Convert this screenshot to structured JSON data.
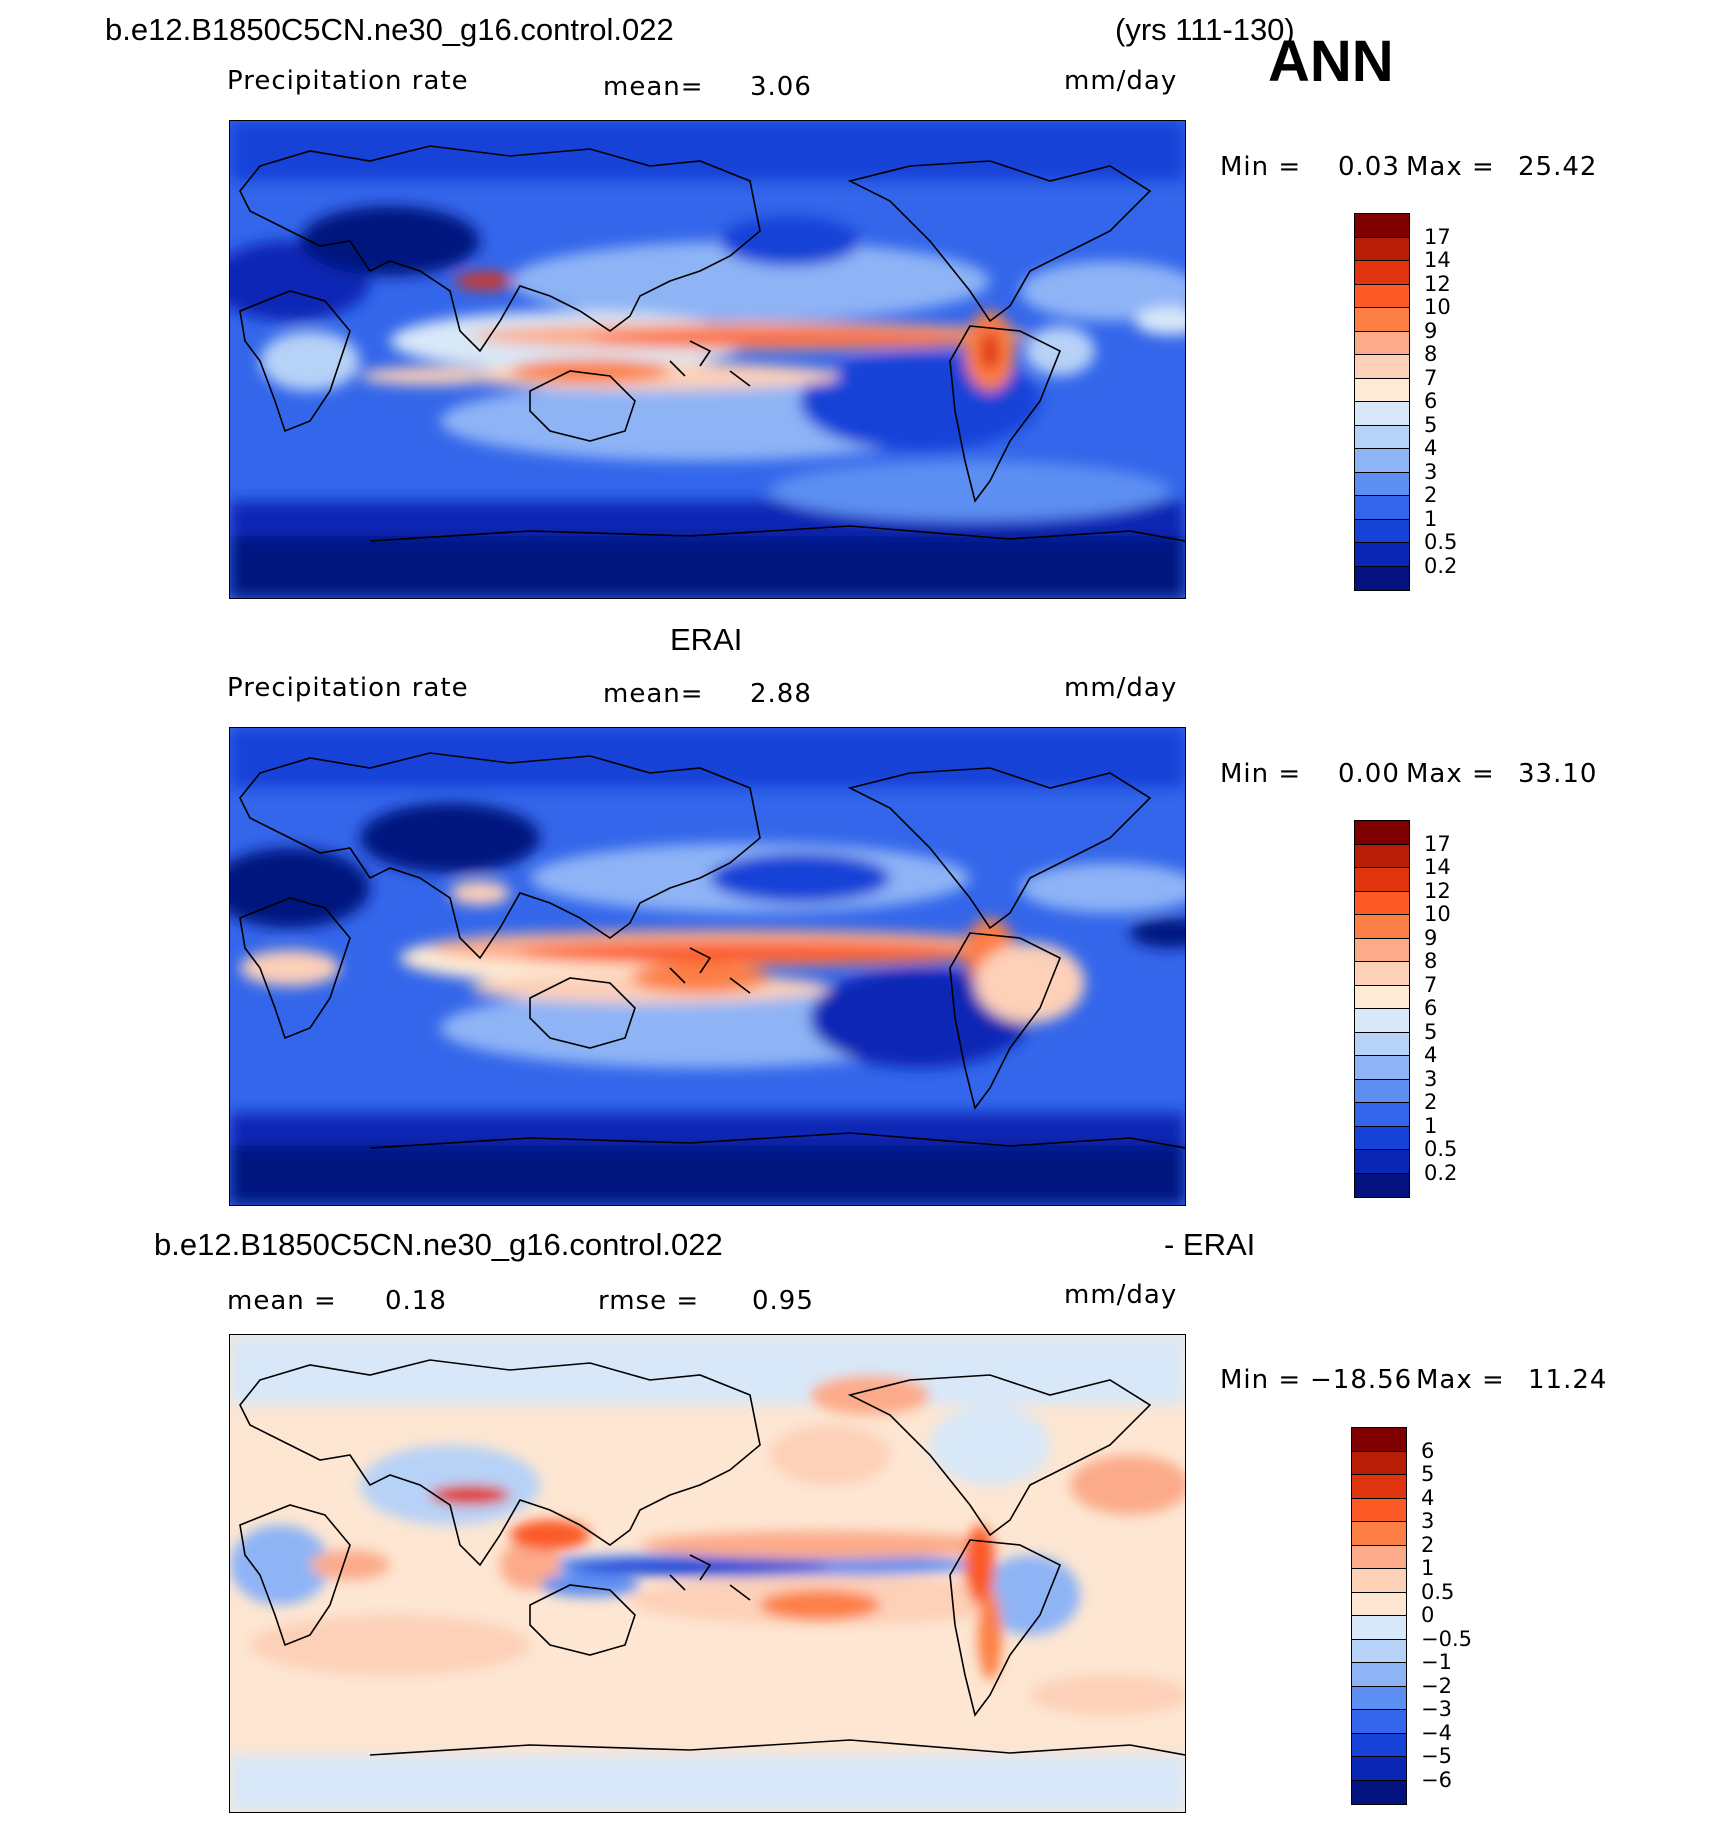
{
  "header": {
    "case_name": "b.e12.B1850C5CN.ne30_g16.control.022",
    "years": "(yrs 111-130)",
    "season": "ANN"
  },
  "panels": [
    {
      "title": "",
      "variable": "Precipitation rate",
      "stat1_label": "mean=",
      "stat1_value": "3.06",
      "stat2_label": "",
      "stat2_value": "",
      "units": "mm/day",
      "min_label": "Min =",
      "min_value": "0.03",
      "max_label": "Max =",
      "max_value": "25.42",
      "colorbar": {
        "ticks": [
          "17",
          "14",
          "12",
          "10",
          "9",
          "8",
          "7",
          "6",
          "5",
          "4",
          "3",
          "2",
          "1",
          "0.5",
          "0.2"
        ],
        "colors": [
          "#7f0000",
          "#b81d06",
          "#e0340f",
          "#fb5a26",
          "#fc7f45",
          "#fcab8a",
          "#fdd0b8",
          "#fdebd6",
          "#d8e8f8",
          "#b7d2f7",
          "#8eb4f6",
          "#5d8ff2",
          "#3366ea",
          "#1742d8",
          "#0a26b5",
          "#02127f"
        ]
      }
    },
    {
      "title": "ERAI",
      "variable": "Precipitation rate",
      "stat1_label": "mean=",
      "stat1_value": "2.88",
      "stat2_label": "",
      "stat2_value": "",
      "units": "mm/day",
      "min_label": "Min =",
      "min_value": "0.00",
      "max_label": "Max =",
      "max_value": "33.10",
      "colorbar": {
        "ticks": [
          "17",
          "14",
          "12",
          "10",
          "9",
          "8",
          "7",
          "6",
          "5",
          "4",
          "3",
          "2",
          "1",
          "0.5",
          "0.2"
        ],
        "colors": [
          "#7f0000",
          "#b81d06",
          "#e0340f",
          "#fb5a26",
          "#fc7f45",
          "#fcab8a",
          "#fdd0b8",
          "#fdebd6",
          "#d8e8f8",
          "#b7d2f7",
          "#8eb4f6",
          "#5d8ff2",
          "#3366ea",
          "#1742d8",
          "#0a26b5",
          "#02127f"
        ]
      }
    },
    {
      "title_left": "b.e12.B1850C5CN.ne30_g16.control.022",
      "title_right": "- ERAI",
      "stat1_label": "mean =",
      "stat1_value": "0.18",
      "stat2_label": "rmse =",
      "stat2_value": "0.95",
      "units": "mm/day",
      "min_label": "Min =",
      "min_value": "−18.56",
      "max_label": "Max =",
      "max_value": "11.24",
      "colorbar": {
        "ticks": [
          "6",
          "5",
          "4",
          "3",
          "2",
          "1",
          "0.5",
          "0",
          "−0.5",
          "−1",
          "−2",
          "−3",
          "−4",
          "−5",
          "−6"
        ],
        "colors": [
          "#7f0000",
          "#b81d06",
          "#e0340f",
          "#fb5a26",
          "#fc7f45",
          "#fcab8a",
          "#fdd0b8",
          "#fde6d2",
          "#d8e8f8",
          "#b7d2f7",
          "#8eb4f6",
          "#5d8ff2",
          "#3366ea",
          "#1742d8",
          "#0a26b5",
          "#02127f"
        ]
      }
    }
  ]
}
